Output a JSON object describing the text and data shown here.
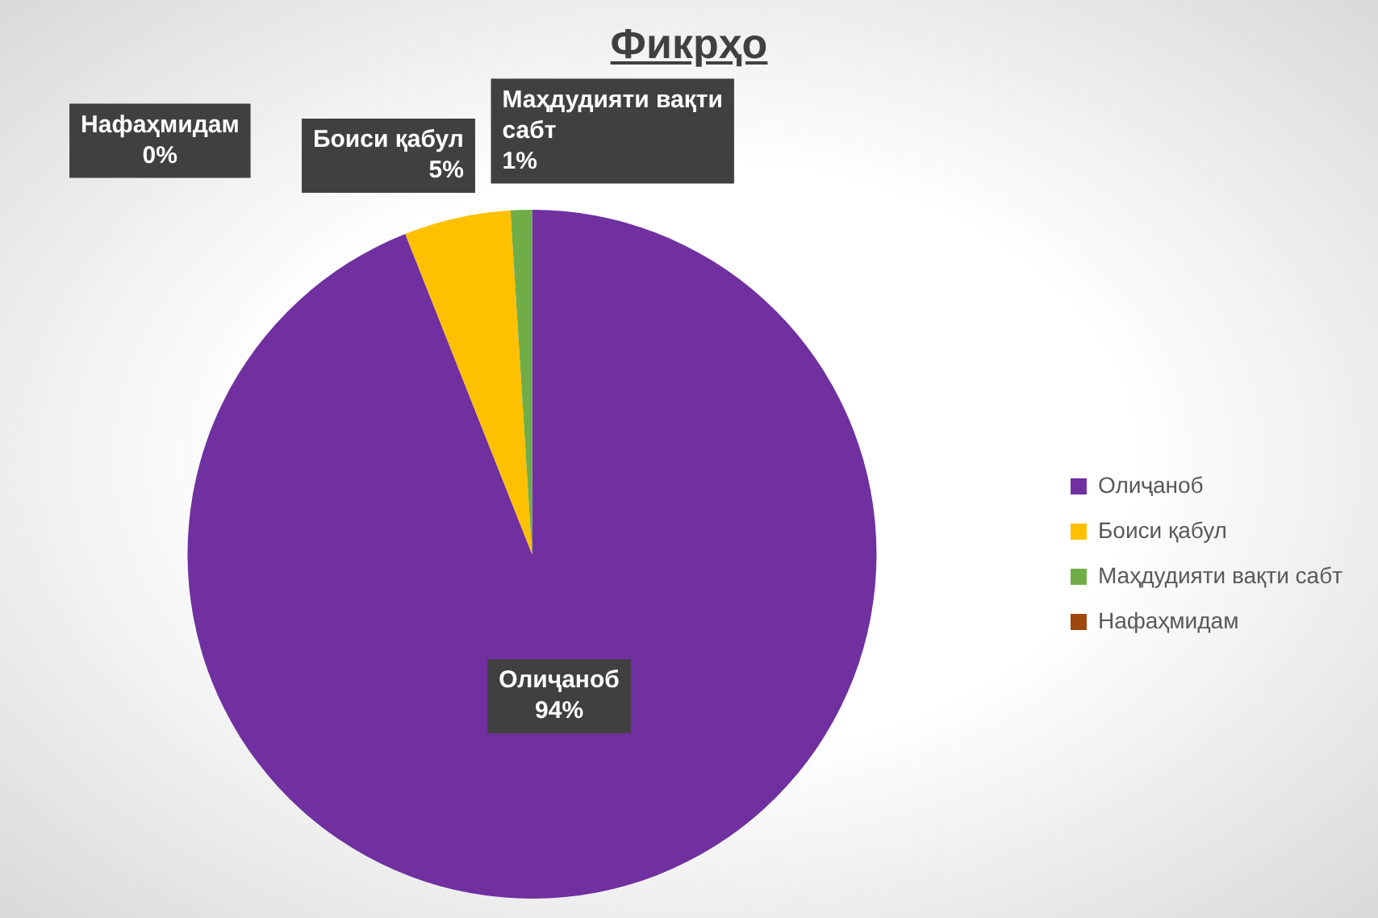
{
  "chart_data": {
    "type": "pie",
    "title": "Фикрҳо",
    "categories": [
      "Олиҷаноб",
      "Боиси қабул",
      "Маҳдудияти вақти сабт",
      "Нафаҳмидам"
    ],
    "values": [
      94,
      5,
      1,
      0
    ],
    "colors": [
      "#7030a0",
      "#ffc000",
      "#70ad47",
      "#9e480e"
    ],
    "value_labels": [
      "94%",
      "5%",
      "1%",
      "0%"
    ],
    "legend": "right"
  }
}
